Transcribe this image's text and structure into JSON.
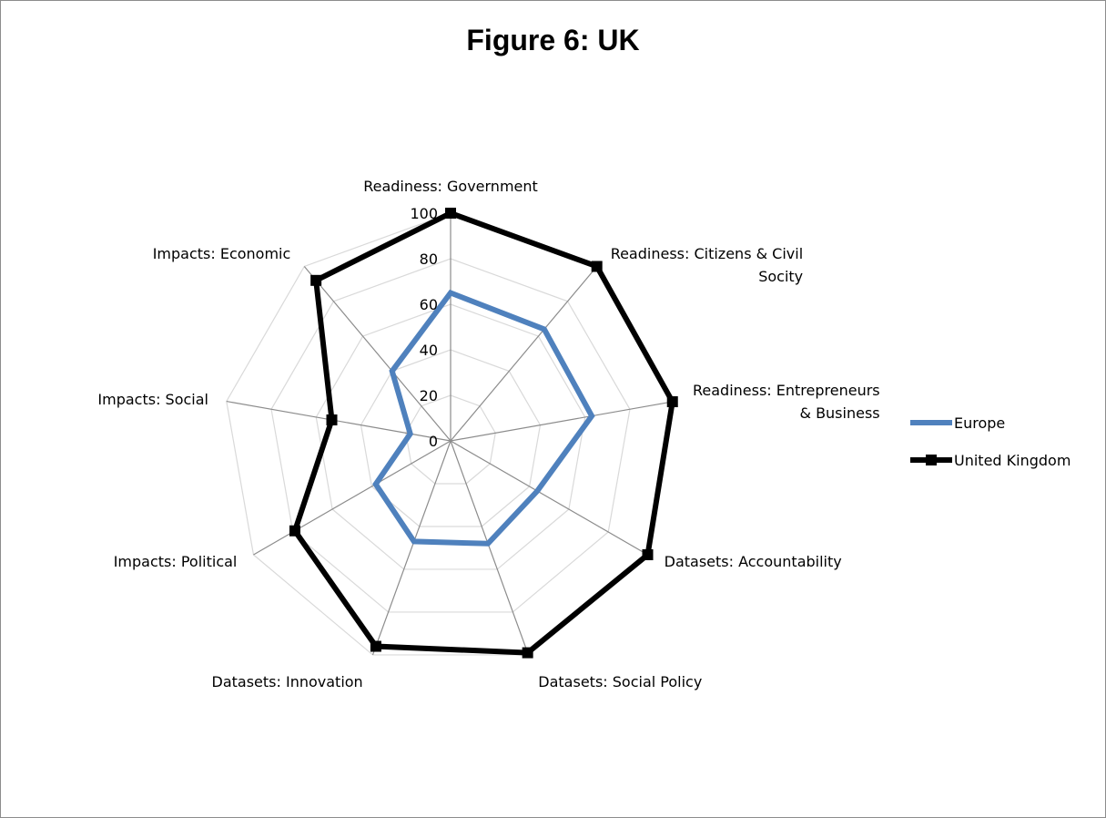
{
  "chart_data": {
    "type": "radar",
    "title": "Figure 6: UK",
    "categories": [
      [
        "Readiness: Government"
      ],
      [
        "Readiness: Citizens & Civil",
        "Socity"
      ],
      [
        "Readiness: Entrepreneurs",
        "& Business"
      ],
      [
        "Datasets: Accountability"
      ],
      [
        "Datasets: Social Policy"
      ],
      [
        "Datasets: Innovation"
      ],
      [
        "Impacts: Political"
      ],
      [
        "Impacts: Social"
      ],
      [
        "Impacts: Economic"
      ]
    ],
    "range": [
      0,
      100
    ],
    "ticks": [
      "0",
      "20",
      "40",
      "60",
      "80",
      "100"
    ],
    "legend_position": "right",
    "series": [
      {
        "name": "Europe",
        "color": "#4f81bd",
        "marker": "none",
        "values": [
          65,
          64,
          63,
          44,
          48,
          47,
          38,
          18,
          40
        ]
      },
      {
        "name": "United Kingdom",
        "color": "#000000",
        "marker": "square",
        "values": [
          100,
          100,
          99,
          100,
          99,
          96,
          79,
          53,
          92
        ]
      }
    ]
  }
}
